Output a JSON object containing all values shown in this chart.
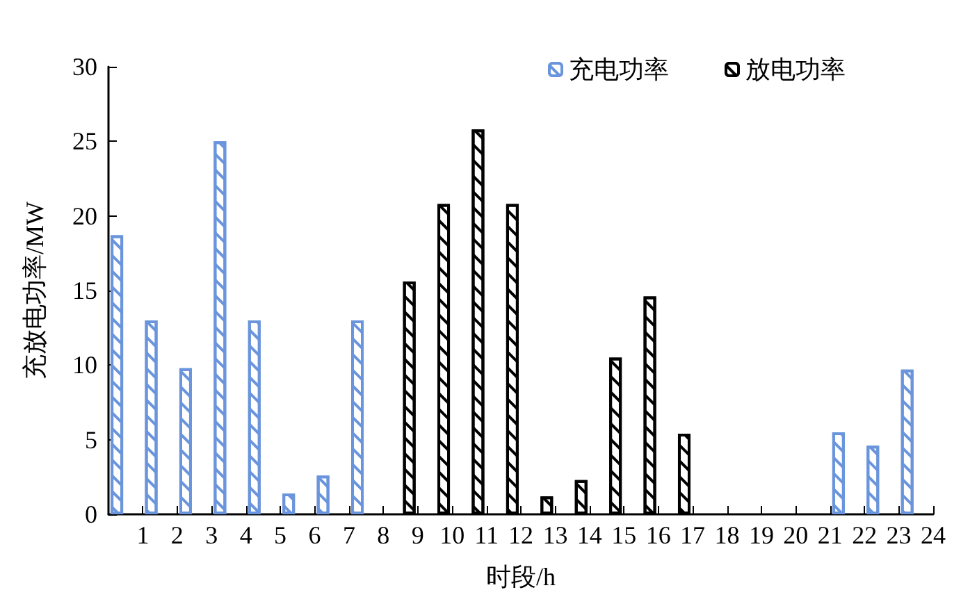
{
  "chart_data": {
    "type": "bar",
    "xlabel": "时段/h",
    "ylabel": "充放电功率/MW",
    "x": [
      0.5,
      1.5,
      2.5,
      3.5,
      4.5,
      5.5,
      6.5,
      7.5,
      8.5,
      9.5,
      10.5,
      11.5,
      12.5,
      13.5,
      14.5,
      15.5,
      16.5,
      17.5,
      18.5,
      19.5,
      20.5,
      21.5,
      22.5,
      23.5
    ],
    "series": [
      {
        "name": "充电功率",
        "color": "#6a95dc",
        "values": [
          18.7,
          13.0,
          9.8,
          25.0,
          13.0,
          1.4,
          2.6,
          13.0,
          null,
          null,
          null,
          null,
          null,
          null,
          null,
          null,
          null,
          null,
          null,
          null,
          null,
          5.5,
          4.6,
          9.7
        ]
      },
      {
        "name": "放电功率",
        "color": "#000000",
        "values": [
          null,
          null,
          null,
          null,
          null,
          null,
          null,
          null,
          15.6,
          20.8,
          25.8,
          20.8,
          1.2,
          2.3,
          10.5,
          14.6,
          5.4,
          null,
          null,
          null,
          null,
          null,
          null,
          null
        ]
      }
    ],
    "xlim": [
      0,
      24
    ],
    "xticks": [
      1,
      2,
      3,
      4,
      5,
      6,
      7,
      8,
      9,
      10,
      11,
      12,
      13,
      14,
      15,
      16,
      17,
      18,
      19,
      20,
      21,
      22,
      23,
      24
    ],
    "ylim": [
      0,
      30
    ],
    "yticks": [
      0,
      5,
      10,
      15,
      20,
      25,
      30
    ],
    "grid": false,
    "legend": "top right"
  }
}
